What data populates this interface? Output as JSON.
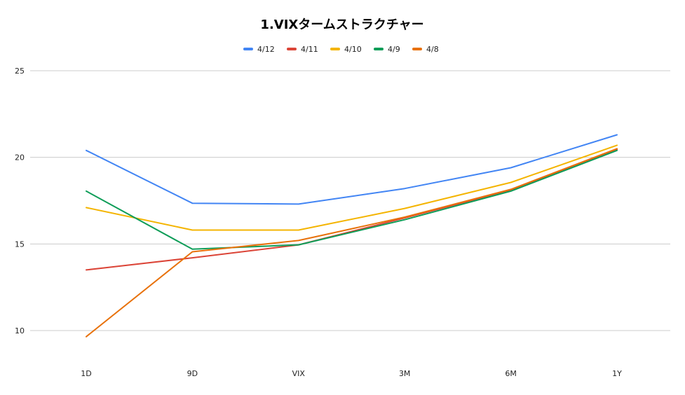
{
  "chart_data": {
    "type": "line",
    "title": "1.VIXタームストラクチャー",
    "xlabel": "",
    "ylabel": "",
    "categories": [
      "1D",
      "9D",
      "VIX",
      "3M",
      "6M",
      "1Y"
    ],
    "yticks": [
      "10",
      "15",
      "20",
      "25"
    ],
    "ylim": [
      10,
      25
    ],
    "grid": true,
    "legend_position": "top",
    "series": [
      {
        "name": "4/12",
        "color": "#4285F4",
        "values": [
          20.4,
          17.35,
          17.3,
          18.2,
          19.4,
          21.3
        ]
      },
      {
        "name": "4/11",
        "color": "#DB4437",
        "values": [
          13.5,
          14.2,
          14.95,
          16.5,
          18.1,
          20.45
        ]
      },
      {
        "name": "4/10",
        "color": "#F4B400",
        "values": [
          17.1,
          15.8,
          15.8,
          17.05,
          18.55,
          20.7
        ]
      },
      {
        "name": "4/9",
        "color": "#0F9D58",
        "values": [
          18.05,
          14.7,
          14.95,
          16.4,
          18.05,
          20.4
        ]
      },
      {
        "name": "4/8",
        "color": "#E8710A",
        "values": [
          9.65,
          14.55,
          15.2,
          16.55,
          18.15,
          20.5
        ]
      }
    ]
  }
}
